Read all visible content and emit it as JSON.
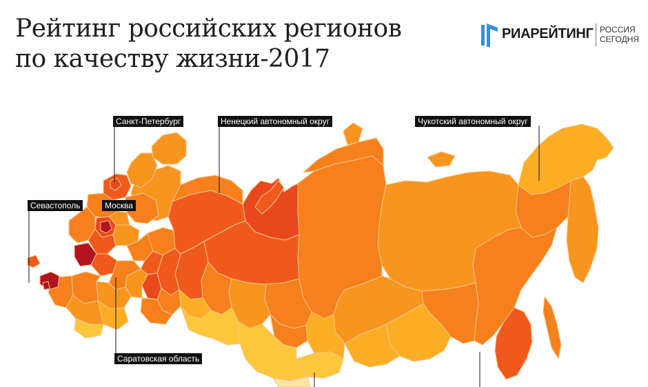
{
  "header": {
    "title_line1": "Рейтинг российских регионов",
    "title_line2": "по качеству жизни-2017"
  },
  "logo": {
    "brand": "РИАРЕЙТИНГ",
    "publisher_line1": "РОССИЯ",
    "publisher_line2": "СЕГОДНЯ",
    "brand_color": "#3a8fd6"
  },
  "map": {
    "palette": {
      "dark_red": "#b3121f",
      "red": "#e8481c",
      "red_orange": "#ef5a1c",
      "orange": "#f5801c",
      "light_orange": "#f8951f",
      "amber": "#fbae23",
      "yellow": "#fcc73a",
      "pale_yellow": "#fde4a6",
      "borders": "#f9c58e"
    },
    "callouts": {
      "spb": "Санкт-Петербург",
      "nenets": "Ненецкий автономный округ",
      "chukotka": "Чукотский автономный округ",
      "sevastopol": "Севастополь",
      "moscow": "Москва",
      "saratov": "Саратовская область"
    }
  }
}
